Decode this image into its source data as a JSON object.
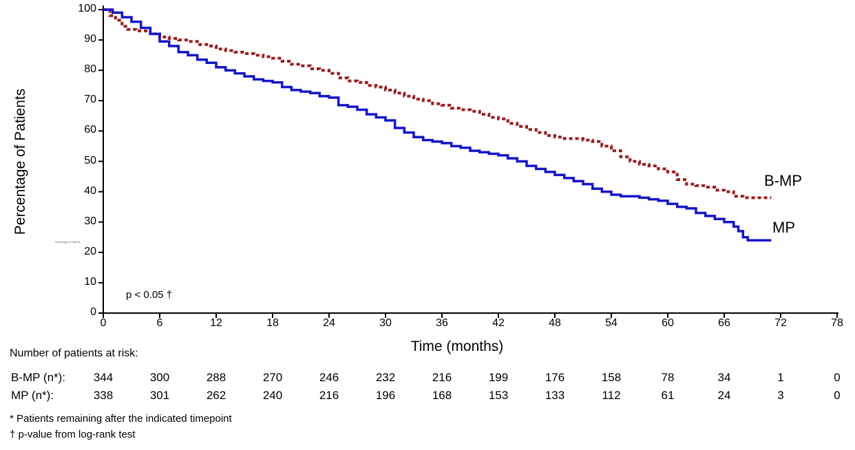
{
  "chart_data": {
    "type": "line",
    "subtype": "kaplan-meier-step",
    "title": "",
    "xlabel": "Time (months)",
    "ylabel": "Percentage of Patients",
    "xlim": [
      0,
      78
    ],
    "ylim": [
      0,
      100
    ],
    "x_ticks": [
      0,
      6,
      12,
      18,
      24,
      30,
      36,
      42,
      48,
      54,
      60,
      66,
      72,
      78
    ],
    "y_ticks": [
      0,
      10,
      20,
      30,
      40,
      50,
      60,
      70,
      80,
      90,
      100
    ],
    "grid": false,
    "legend_position": "end-of-line-labels",
    "annotation": "p < 0.05 †",
    "series": [
      {
        "name": "B-MP",
        "color": "#9B1B1B",
        "style": "dashed",
        "points": [
          [
            0,
            100
          ],
          [
            0.7,
            98
          ],
          [
            1.3,
            96.5
          ],
          [
            2,
            94.5
          ],
          [
            2.6,
            93.5
          ],
          [
            3.5,
            93
          ],
          [
            5,
            92
          ],
          [
            6,
            91
          ],
          [
            7,
            90.5
          ],
          [
            8,
            90
          ],
          [
            9,
            89.5
          ],
          [
            10,
            88.5
          ],
          [
            11,
            88
          ],
          [
            12,
            87
          ],
          [
            13,
            86.5
          ],
          [
            14,
            86
          ],
          [
            15,
            85.5
          ],
          [
            16,
            85
          ],
          [
            17,
            84.5
          ],
          [
            18,
            84
          ],
          [
            19,
            83
          ],
          [
            20,
            82
          ],
          [
            21,
            81.5
          ],
          [
            22,
            80.5
          ],
          [
            23,
            80
          ],
          [
            24,
            79
          ],
          [
            25,
            77.5
          ],
          [
            26,
            76.5
          ],
          [
            27,
            76
          ],
          [
            28,
            75
          ],
          [
            29,
            74.5
          ],
          [
            30,
            73.5
          ],
          [
            31,
            72.5
          ],
          [
            32,
            71.5
          ],
          [
            33,
            70.5
          ],
          [
            34,
            70
          ],
          [
            35,
            69
          ],
          [
            36,
            68.5
          ],
          [
            37,
            67.5
          ],
          [
            38,
            67
          ],
          [
            39,
            66.5
          ],
          [
            40,
            65.5
          ],
          [
            41,
            64.5
          ],
          [
            42,
            64
          ],
          [
            43,
            62.5
          ],
          [
            44,
            61.5
          ],
          [
            45,
            60.5
          ],
          [
            46,
            59.5
          ],
          [
            47,
            58.5
          ],
          [
            48,
            58
          ],
          [
            49,
            57.5
          ],
          [
            50,
            57.5
          ],
          [
            51,
            57
          ],
          [
            52,
            56.5
          ],
          [
            53,
            55
          ],
          [
            54,
            53.5
          ],
          [
            55,
            51.5
          ],
          [
            56,
            50
          ],
          [
            57,
            49
          ],
          [
            58,
            48.5
          ],
          [
            59,
            47.5
          ],
          [
            60,
            46.5
          ],
          [
            61,
            44
          ],
          [
            62,
            42.5
          ],
          [
            63,
            42
          ],
          [
            64,
            41.5
          ],
          [
            65,
            40.5
          ],
          [
            66,
            40
          ],
          [
            67,
            38.5
          ],
          [
            68,
            38
          ],
          [
            71,
            38
          ]
        ]
      },
      {
        "name": "MP",
        "color": "#1414CC",
        "style": "solid",
        "points": [
          [
            0,
            100
          ],
          [
            1,
            99
          ],
          [
            2,
            97.5
          ],
          [
            3,
            96
          ],
          [
            4,
            94
          ],
          [
            5,
            92
          ],
          [
            6,
            89.5
          ],
          [
            7,
            88
          ],
          [
            8,
            86
          ],
          [
            9,
            85
          ],
          [
            10,
            83.5
          ],
          [
            11,
            82.5
          ],
          [
            12,
            81
          ],
          [
            13,
            80
          ],
          [
            14,
            79
          ],
          [
            15,
            78
          ],
          [
            16,
            77
          ],
          [
            17,
            76.5
          ],
          [
            18,
            76
          ],
          [
            19,
            74.5
          ],
          [
            20,
            73.5
          ],
          [
            21,
            73
          ],
          [
            22,
            72.5
          ],
          [
            23,
            71.5
          ],
          [
            24,
            71
          ],
          [
            25,
            68.5
          ],
          [
            26,
            68
          ],
          [
            27,
            67
          ],
          [
            28,
            65.5
          ],
          [
            29,
            64.5
          ],
          [
            30,
            63.5
          ],
          [
            31,
            61
          ],
          [
            32,
            59.5
          ],
          [
            33,
            58
          ],
          [
            34,
            57
          ],
          [
            35,
            56.5
          ],
          [
            36,
            56
          ],
          [
            37,
            55
          ],
          [
            38,
            54.5
          ],
          [
            39,
            53.5
          ],
          [
            40,
            53
          ],
          [
            41,
            52.5
          ],
          [
            42,
            52
          ],
          [
            43,
            51
          ],
          [
            44,
            50
          ],
          [
            45,
            48.5
          ],
          [
            46,
            47.5
          ],
          [
            47,
            46.5
          ],
          [
            48,
            45.5
          ],
          [
            49,
            44.5
          ],
          [
            50,
            43.5
          ],
          [
            51,
            42.5
          ],
          [
            52,
            41
          ],
          [
            53,
            40
          ],
          [
            54,
            39
          ],
          [
            55,
            38.5
          ],
          [
            56,
            38.5
          ],
          [
            57,
            38
          ],
          [
            58,
            37.5
          ],
          [
            59,
            37
          ],
          [
            60,
            36
          ],
          [
            61,
            35
          ],
          [
            62,
            34.5
          ],
          [
            63,
            33
          ],
          [
            64,
            32
          ],
          [
            65,
            31
          ],
          [
            66,
            30
          ],
          [
            67,
            28.5
          ],
          [
            67.5,
            27
          ],
          [
            68,
            25
          ],
          [
            68.5,
            24
          ],
          [
            71,
            24
          ]
        ]
      }
    ]
  },
  "at_risk": {
    "heading": "Number of patients at risk:",
    "rows": [
      {
        "label": "B-MP (n*):",
        "values": [
          344,
          300,
          288,
          270,
          246,
          232,
          216,
          199,
          176,
          158,
          78,
          34,
          1,
          0
        ]
      },
      {
        "label": "MP (n*):",
        "values": [
          338,
          301,
          262,
          240,
          216,
          196,
          168,
          153,
          133,
          112,
          61,
          24,
          3,
          0
        ]
      }
    ]
  },
  "footnotes": [
    "*  Patients remaining after the indicated timepoint",
    "†  p-value from log-rank test"
  ]
}
